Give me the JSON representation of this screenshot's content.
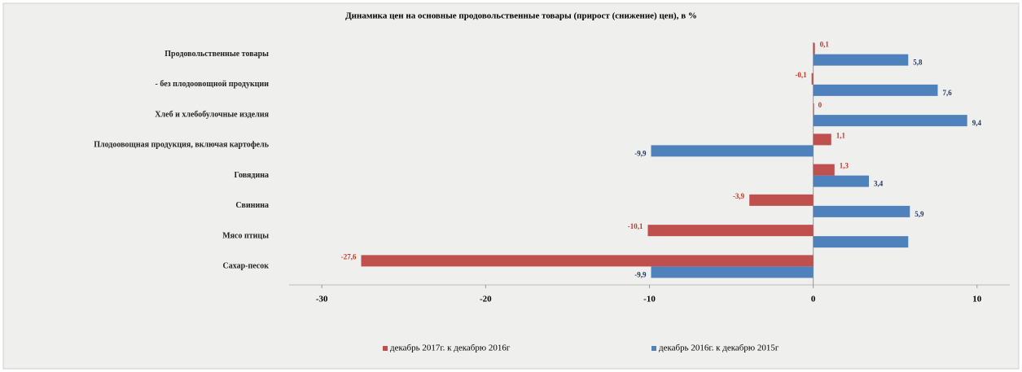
{
  "chart_data": {
    "type": "hbar",
    "title": "Динамика цен на основные продовольственные товары (прирост (снижение) цен), в %",
    "categories": [
      "Продовольственные товары",
      "- без плодоовощной продукции",
      "Хлеб и хлебобулочные изделия",
      "Плодоовощная продукция, включая картофель",
      "Говядина",
      "Свинина",
      "Мясо птицы",
      "Сахар-песок"
    ],
    "series": [
      {
        "name": "декабрь 2017г. к декабрю 2016г",
        "color": "#c0504d",
        "values": [
          0.1,
          -0.1,
          0,
          1.1,
          1.3,
          -3.9,
          -10.1,
          -27.6
        ],
        "value_labels": [
          "0,1",
          "-0,1",
          "0",
          "1,1",
          "1,3",
          "-3,9",
          "-10,1",
          "-27,6"
        ]
      },
      {
        "name": "декабрь 2016г. к декабрю 2015г",
        "color": "#4f81bd",
        "values": [
          5.8,
          7.6,
          9.4,
          -9.9,
          3.4,
          5.9,
          5.8,
          -9.9
        ],
        "value_labels": [
          "5,8",
          "7,6",
          "9,4",
          "-9,9",
          "3,4",
          "5,9",
          null,
          "-9,9"
        ]
      }
    ],
    "xlim": [
      -32,
      12
    ],
    "xticks": [
      -30,
      -20,
      -10,
      0,
      10
    ],
    "legend": "bottom"
  }
}
